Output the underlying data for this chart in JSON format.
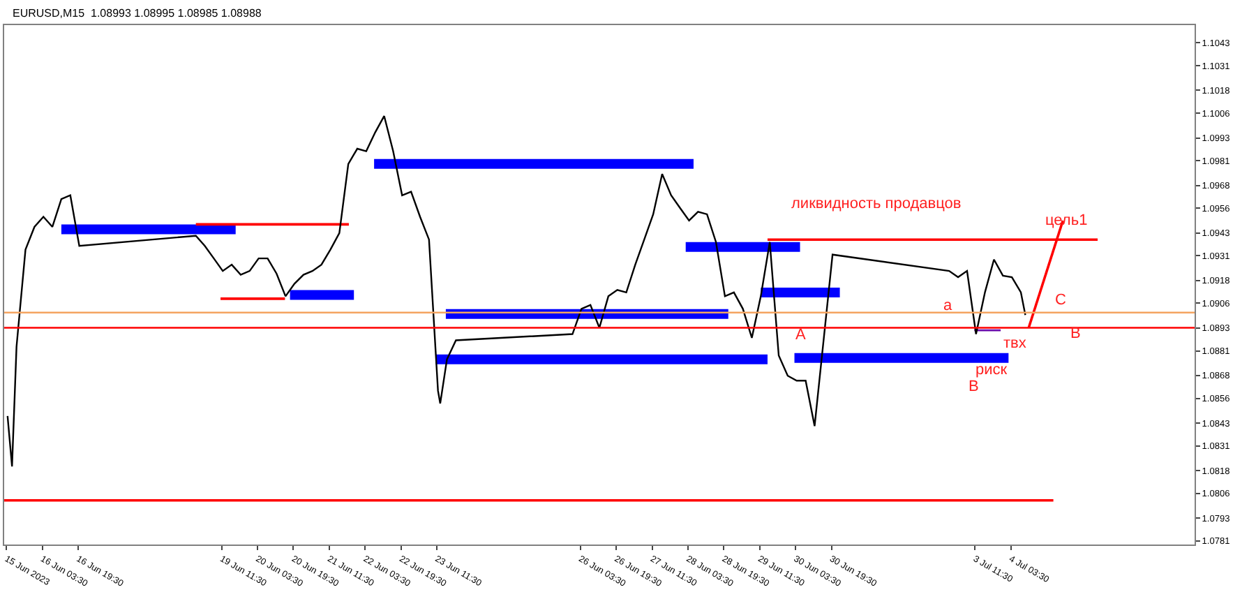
{
  "chart_data": {
    "type": "line",
    "title": "EURUSD,M15  1.08993 1.08995 1.08985 1.08988",
    "xlim": [
      "2023-06-15T10:30",
      "2023-07-07T13:30"
    ],
    "ylim": [
      1.07791,
      1.10523
    ],
    "yticks": [
      1.1043,
      1.1031,
      1.1018,
      1.1006,
      1.0993,
      1.0981,
      1.0968,
      1.0956,
      1.0943,
      1.0931,
      1.0918,
      1.0906,
      1.0893,
      1.0881,
      1.0868,
      1.0856,
      1.0843,
      1.0831,
      1.0818,
      1.0806,
      1.0793,
      1.0781
    ],
    "xticks": [
      {
        "value": "2023-06-15T11:30",
        "label": "15 Jun 2023"
      },
      {
        "value": "2023-06-16T03:30",
        "label": "16 Jun 03:30"
      },
      {
        "value": "2023-06-16T19:30",
        "label": "16 Jun 19:30"
      },
      {
        "value": "2023-06-19T11:30",
        "label": "19 Jun 11:30"
      },
      {
        "value": "2023-06-20T03:30",
        "label": "20 Jun 03:30"
      },
      {
        "value": "2023-06-20T19:30",
        "label": "20 Jun 19:30"
      },
      {
        "value": "2023-06-21T11:30",
        "label": "21 Jun 11:30"
      },
      {
        "value": "2023-06-22T03:30",
        "label": "22 Jun 03:30"
      },
      {
        "value": "2023-06-22T19:30",
        "label": "22 Jun 19:30"
      },
      {
        "value": "2023-06-23T11:30",
        "label": "23 Jun 11:30"
      },
      {
        "value": "2023-06-26T03:30",
        "label": "26 Jun 03:30"
      },
      {
        "value": "2023-06-26T19:30",
        "label": "26 Jun 19:30"
      },
      {
        "value": "2023-06-27T11:30",
        "label": "27 Jun 11:30"
      },
      {
        "value": "2023-06-28T03:30",
        "label": "28 Jun 03:30"
      },
      {
        "value": "2023-06-28T19:30",
        "label": "28 Jun 19:30"
      },
      {
        "value": "2023-06-29T11:30",
        "label": "29 Jun 11:30"
      },
      {
        "value": "2023-06-30T03:30",
        "label": "30 Jun 03:30"
      },
      {
        "value": "2023-06-30T19:30",
        "label": "30 Jun 19:30"
      },
      {
        "value": "2023-07-03T11:30",
        "label": "3 Jul 11:30"
      },
      {
        "value": "2023-07-04T03:30",
        "label": "4 Jul 03:30"
      }
    ],
    "marker": "none",
    "line_style": "solid",
    "series": [
      {
        "color": "#000000",
        "x": [
          "2023-06-15T12:00",
          "2023-06-15T14:00",
          "2023-06-15T16:00",
          "2023-06-15T20:00",
          "2023-06-16T00:00",
          "2023-06-16T04:00",
          "2023-06-16T08:00",
          "2023-06-16T12:00",
          "2023-06-16T16:00",
          "2023-06-16T20:00",
          "2023-06-19T00:00",
          "2023-06-19T04:00",
          "2023-06-19T08:00",
          "2023-06-19T12:00",
          "2023-06-19T16:00",
          "2023-06-19T20:00",
          "2023-06-20T00:00",
          "2023-06-20T04:00",
          "2023-06-20T08:00",
          "2023-06-20T12:00",
          "2023-06-20T16:00",
          "2023-06-20T20:00",
          "2023-06-21T00:00",
          "2023-06-21T04:00",
          "2023-06-21T08:00",
          "2023-06-21T12:00",
          "2023-06-21T16:00",
          "2023-06-21T20:00",
          "2023-06-22T00:00",
          "2023-06-22T04:00",
          "2023-06-22T08:00",
          "2023-06-22T12:00",
          "2023-06-22T16:00",
          "2023-06-22T20:00",
          "2023-06-23T00:00",
          "2023-06-23T04:00",
          "2023-06-23T08:00",
          "2023-06-23T12:00",
          "2023-06-23T13:00",
          "2023-06-23T16:00",
          "2023-06-23T20:00",
          "2023-06-26T00:00",
          "2023-06-26T04:00",
          "2023-06-26T08:00",
          "2023-06-26T12:00",
          "2023-06-26T16:00",
          "2023-06-26T20:00",
          "2023-06-27T00:00",
          "2023-06-27T04:00",
          "2023-06-27T08:00",
          "2023-06-27T12:00",
          "2023-06-27T16:00",
          "2023-06-27T20:00",
          "2023-06-28T00:00",
          "2023-06-28T04:00",
          "2023-06-28T08:00",
          "2023-06-28T12:00",
          "2023-06-28T16:00",
          "2023-06-28T20:00",
          "2023-06-29T00:00",
          "2023-06-29T04:00",
          "2023-06-29T08:00",
          "2023-06-29T12:00",
          "2023-06-29T16:00",
          "2023-06-29T20:00",
          "2023-06-30T00:00",
          "2023-06-30T04:00",
          "2023-06-30T08:00",
          "2023-06-30T12:00",
          "2023-06-30T16:00",
          "2023-06-30T20:00",
          "2023-07-03T00:00",
          "2023-07-03T04:00",
          "2023-07-03T08:00",
          "2023-07-03T12:00",
          "2023-07-03T16:00",
          "2023-07-03T20:00",
          "2023-07-04T00:00",
          "2023-07-04T04:00",
          "2023-07-04T08:00",
          "2023-07-04T10:00"
        ],
        "values": [
          1.08467,
          1.08202,
          1.08832,
          1.09342,
          1.09462,
          1.09515,
          1.09462,
          1.09608,
          1.09628,
          1.09362,
          1.09415,
          1.09362,
          1.09296,
          1.0923,
          1.09263,
          1.0921,
          1.0923,
          1.09296,
          1.09296,
          1.09216,
          1.09097,
          1.09163,
          1.0921,
          1.0923,
          1.09263,
          1.09342,
          1.09429,
          1.09793,
          1.09873,
          1.0986,
          1.09959,
          1.10045,
          1.0986,
          1.09628,
          1.09647,
          1.09515,
          1.09395,
          1.086,
          1.08533,
          1.08765,
          1.08865,
          1.08898,
          1.09031,
          1.09051,
          1.08931,
          1.09097,
          1.0913,
          1.09117,
          1.09263,
          1.09395,
          1.09528,
          1.0974,
          1.09628,
          1.09561,
          1.09495,
          1.09541,
          1.09528,
          1.09382,
          1.09097,
          1.09117,
          1.09031,
          1.08878,
          1.09097,
          1.09382,
          1.08785,
          1.08679,
          1.08653,
          1.08653,
          1.08414,
          1.08865,
          1.09316,
          1.0923,
          1.09197,
          1.0923,
          1.08898,
          1.09118,
          1.0929,
          1.09205,
          1.09197,
          1.09118,
          1.08998
        ]
      },
      {
        "color": "#0000ff",
        "x": [
          "2023-06-16T12:00",
          "2023-06-19T17:45"
        ],
        "values": [
          1.09449,
          1.09449
        ]
      },
      {
        "color": "#ff0000",
        "x": [
          "2023-06-19T00:00",
          "2023-06-21T20:15"
        ],
        "values": [
          1.09475,
          1.09475
        ]
      },
      {
        "color": "#ff0000",
        "x": [
          "2023-06-19T11:00",
          "2023-06-20T15:45"
        ],
        "values": [
          1.09084,
          1.09084
        ]
      },
      {
        "color": "#0000ff",
        "x": [
          "2023-06-20T18:00",
          "2023-06-21T22:30"
        ],
        "values": [
          1.09104,
          1.09104
        ]
      },
      {
        "color": "#0000ff",
        "x": [
          "2023-06-22T07:30",
          "2023-06-28T06:00"
        ],
        "values": [
          1.09793,
          1.09793
        ]
      },
      {
        "color": "#0000ff",
        "x": [
          "2023-06-23T15:30",
          "2023-06-28T21:30"
        ],
        "values": [
          1.09004,
          1.09004
        ]
      },
      {
        "color": "#0000ff",
        "x": [
          "2023-06-23T11:00",
          "2023-06-29T15:00"
        ],
        "values": [
          1.08765,
          1.08765
        ]
      },
      {
        "color": "#0000ff",
        "x": [
          "2023-06-28T02:30",
          "2023-06-30T05:30"
        ],
        "values": [
          1.09356,
          1.09356
        ]
      },
      {
        "color": "#0000ff",
        "x": [
          "2023-06-29T12:00",
          "2023-06-30T23:15"
        ],
        "values": [
          1.09117,
          1.09117
        ]
      },
      {
        "color": "#0000ff",
        "x": [
          "2023-06-30T03:00",
          "2023-07-04T02:30"
        ],
        "values": [
          1.08772,
          1.08772
        ]
      },
      {
        "color": "#6a0dad",
        "x": [
          "2023-07-03T11:15",
          "2023-07-03T23:00"
        ],
        "values": [
          1.08918,
          1.08918
        ]
      },
      {
        "color": "#ff0000",
        "x": [
          "2023-06-29T15:00",
          "2023-07-05T18:15"
        ],
        "values": [
          1.09395,
          1.09395
        ]
      },
      {
        "color": "#ff0000",
        "x": [
          "2023-07-04T11:30",
          "2023-07-05T02:45"
        ],
        "values": [
          1.08931,
          1.09495
        ]
      },
      {
        "color": "#ff0000",
        "x": [
          "2023-06-15T10:30",
          "2023-07-04T22:30"
        ],
        "values": [
          1.08023,
          1.08023
        ]
      }
    ],
    "ref_lines": [
      {
        "axis": "y",
        "value": 1.08931,
        "color": "#ff0000"
      },
      {
        "axis": "y",
        "value": 1.09011,
        "color": "#f4a460"
      }
    ],
    "annotations": [
      "ликвидность продавцов",
      "цель1",
      "A",
      "a",
      "В",
      "В",
      "С",
      "твх",
      "риск"
    ]
  }
}
